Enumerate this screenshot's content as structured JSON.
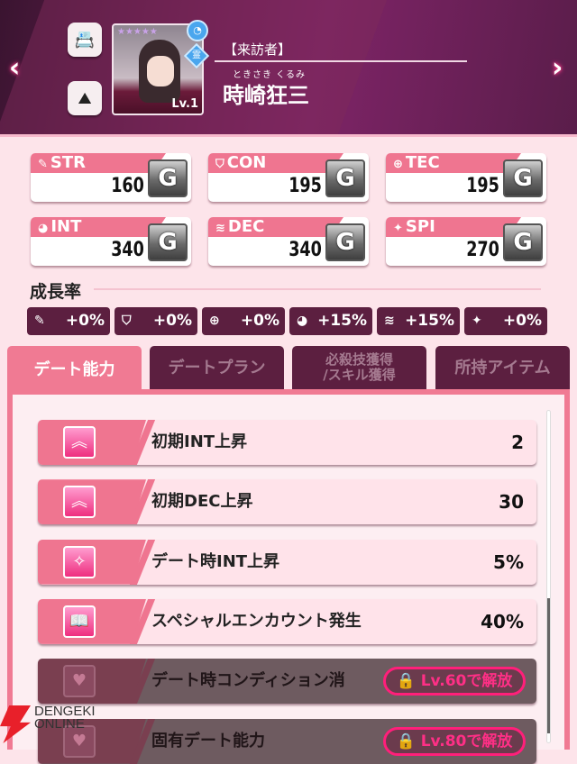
{
  "header": {
    "title": "【来訪者】",
    "ruby": "ときさき くるみ",
    "name": "時崎狂三",
    "level": "Lv.1",
    "stars": "★★★★★",
    "prev_icon": "chevron-left",
    "next_icon": "chevron-right",
    "prev": "‹",
    "next": "›",
    "profile_icon": "📇",
    "scenery_icon": "⛰",
    "element_badge": "霊"
  },
  "stats": [
    {
      "icon": "✎",
      "label": "STR",
      "value": "160",
      "rank": "G"
    },
    {
      "icon": "⛉",
      "label": "CON",
      "value": "195",
      "rank": "G"
    },
    {
      "icon": "⊕",
      "label": "TEC",
      "value": "195",
      "rank": "G"
    },
    {
      "icon": "◕",
      "label": "INT",
      "value": "340",
      "rank": "G"
    },
    {
      "icon": "≋",
      "label": "DEC",
      "value": "340",
      "rank": "G"
    },
    {
      "icon": "✦",
      "label": "SPI",
      "value": "270",
      "rank": "G"
    }
  ],
  "growth": {
    "label": "成長率",
    "items": [
      {
        "icon": "✎",
        "value": "+0%"
      },
      {
        "icon": "⛉",
        "value": "+0%"
      },
      {
        "icon": "⊕",
        "value": "+0%"
      },
      {
        "icon": "◕",
        "value": "+15%"
      },
      {
        "icon": "≋",
        "value": "+15%"
      },
      {
        "icon": "✦",
        "value": "+0%"
      }
    ]
  },
  "tabs": [
    {
      "label": "デート能力",
      "active": true
    },
    {
      "label": "デートプラン"
    },
    {
      "label": "必殺技獲得\n/スキル獲得"
    },
    {
      "label": "所持アイテム"
    }
  ],
  "abilities": [
    {
      "icon": "︽",
      "label": "初期INT上昇",
      "value": "2"
    },
    {
      "icon": "︽",
      "label": "初期DEC上昇",
      "value": "30"
    },
    {
      "icon": "✧",
      "label": "デート時INT上昇",
      "value": "5%"
    },
    {
      "icon": "📖",
      "label": "スペシャルエンカウント発生",
      "value": "40%"
    },
    {
      "icon": "♥",
      "label": "デート時コンディション消",
      "lock": "🔒 Lv.60で解放"
    },
    {
      "icon": "♥",
      "label": "固有デート能力",
      "lock": "🔒 Lv.80で解放"
    }
  ],
  "watermark": {
    "line1": "DENGEKI",
    "line2": "ONLINE"
  },
  "colors": {
    "accent": "#f07a93",
    "dark": "#5c1f40",
    "bg": "#fde4ea",
    "lock": "#ff1f7a"
  }
}
